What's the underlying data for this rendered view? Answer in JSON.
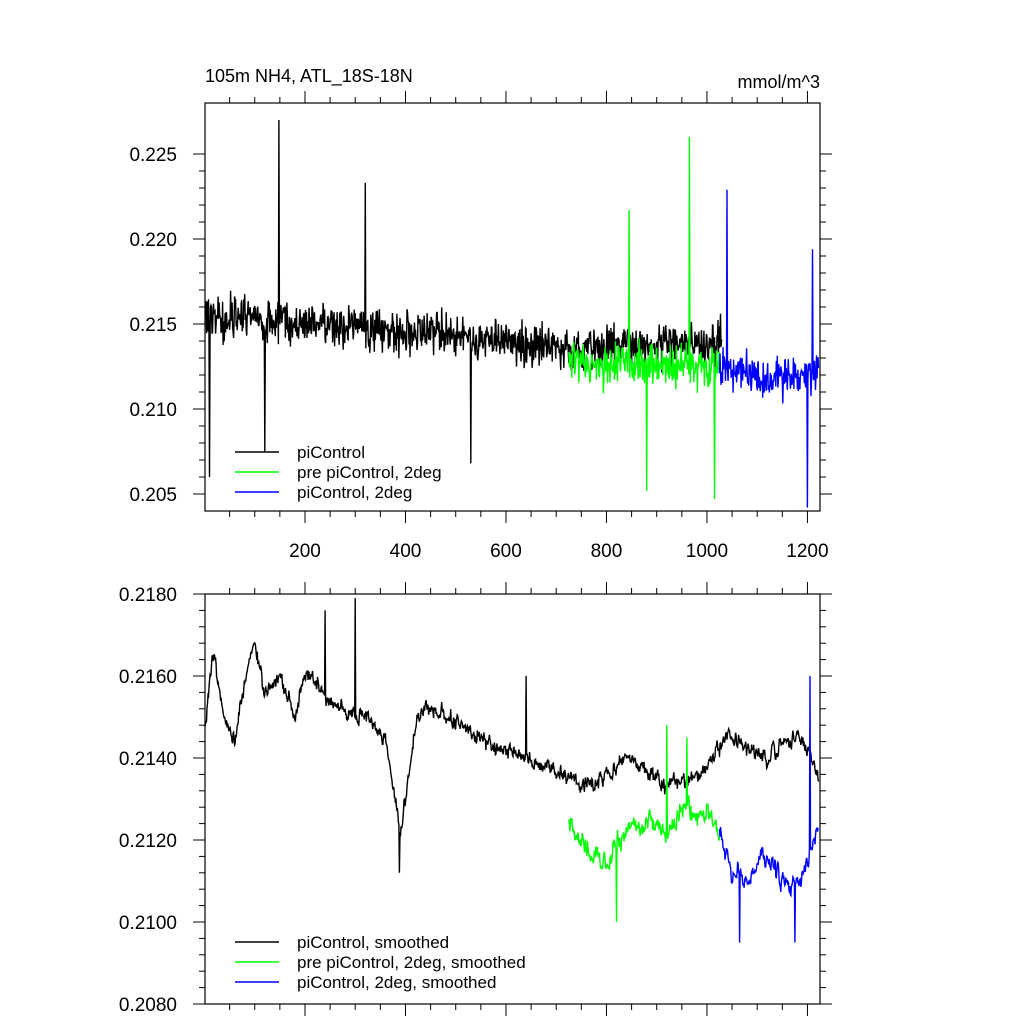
{
  "chart_data": [
    {
      "type": "line",
      "title": "105m NH4, ATL_18S-18N",
      "units": "mmol/m^3",
      "xlim": [
        1,
        1225
      ],
      "ylim": [
        0.204,
        0.228
      ],
      "x_ticks": [
        200,
        400,
        600,
        800,
        1000,
        1200
      ],
      "x_tick_labels": [
        "200",
        "400",
        "600",
        "800",
        "1000",
        "1200"
      ],
      "y_ticks": [
        0.205,
        0.21,
        0.215,
        0.22,
        0.225
      ],
      "y_tick_labels": [
        "0.205",
        "0.210",
        "0.215",
        "0.220",
        "0.225"
      ],
      "legend_placement": "bottom-left",
      "grid": false,
      "series": [
        {
          "name": "piControl",
          "color": "#000000",
          "x": [
            1,
            40,
            80,
            120,
            148,
            180,
            220,
            260,
            300,
            330,
            360,
            400,
            440,
            480,
            530,
            570,
            610,
            650,
            690,
            730,
            760,
            800,
            840,
            880,
            920,
            960,
            1000,
            1030
          ],
          "y": [
            0.2155,
            0.2153,
            0.2156,
            0.2152,
            0.2152,
            0.2151,
            0.2149,
            0.215,
            0.2148,
            0.2147,
            0.2146,
            0.2143,
            0.2146,
            0.2145,
            0.2142,
            0.2141,
            0.214,
            0.2138,
            0.2137,
            0.2135,
            0.2137,
            0.2136,
            0.2138,
            0.2136,
            0.2137,
            0.2139,
            0.2138,
            0.214
          ],
          "amplitude": 0.0018,
          "spikes": [
            [
              148,
              0.227
            ],
            [
              10,
              0.206
            ],
            [
              120,
              0.2075
            ],
            [
              320,
              0.2233
            ],
            [
              530,
              0.2068
            ]
          ]
        },
        {
          "name": "pre piControl, 2deg",
          "color": "#00ff00",
          "x": [
            725,
            760,
            800,
            840,
            880,
            920,
            960,
            1000,
            1025
          ],
          "y": [
            0.2128,
            0.2126,
            0.2124,
            0.2127,
            0.2125,
            0.2126,
            0.2127,
            0.2126,
            0.2125
          ],
          "amplitude": 0.0019,
          "spikes": [
            [
              845,
              0.2217
            ],
            [
              965,
              0.226
            ],
            [
              880,
              0.2052
            ],
            [
              1015,
              0.2047
            ]
          ]
        },
        {
          "name": "piControl, 2deg",
          "color": "#0000ff",
          "x": [
            1025,
            1060,
            1100,
            1140,
            1180,
            1222
          ],
          "y": [
            0.2125,
            0.2122,
            0.212,
            0.2118,
            0.212,
            0.2122
          ],
          "amplitude": 0.0019,
          "spikes": [
            [
              1040,
              0.2229
            ],
            [
              1200,
              0.2042
            ],
            [
              1210,
              0.2194
            ]
          ]
        }
      ]
    },
    {
      "type": "line",
      "title": "",
      "xlim": [
        1,
        1225
      ],
      "ylim": [
        0.208,
        0.218
      ],
      "x_ticks": [
        200,
        400,
        600,
        800,
        1000,
        1200
      ],
      "y_ticks": [
        0.208,
        0.21,
        0.212,
        0.214,
        0.216,
        0.218
      ],
      "y_tick_labels": [
        "0.2080",
        "0.2100",
        "0.2120",
        "0.2140",
        "0.2160",
        "0.2180"
      ],
      "legend_placement": "bottom-left",
      "grid": false,
      "series": [
        {
          "name": "piControl, smoothed",
          "color": "#000000",
          "x": [
            1,
            15,
            40,
            60,
            80,
            100,
            120,
            150,
            180,
            200,
            240,
            280,
            320,
            360,
            390,
            420,
            440,
            480,
            520,
            560,
            600,
            640,
            680,
            720,
            760,
            800,
            840,
            880,
            920,
            960,
            1000,
            1040,
            1080,
            1120,
            1160,
            1200,
            1222
          ],
          "y": [
            0.2148,
            0.2165,
            0.215,
            0.2145,
            0.2158,
            0.2168,
            0.2155,
            0.216,
            0.215,
            0.2162,
            0.2155,
            0.2152,
            0.215,
            0.2145,
            0.2122,
            0.2148,
            0.2152,
            0.215,
            0.2148,
            0.2143,
            0.2142,
            0.214,
            0.2138,
            0.2135,
            0.2133,
            0.2135,
            0.214,
            0.2137,
            0.2133,
            0.2135,
            0.2138,
            0.2145,
            0.2142,
            0.214,
            0.2145,
            0.2143,
            0.2135
          ],
          "amplitude": 0.0006,
          "spikes": [
            [
              240,
              0.2176
            ],
            [
              300,
              0.2179
            ],
            [
              388,
              0.2112
            ],
            [
              640,
              0.216
            ]
          ]
        },
        {
          "name": "pre piControl, 2deg, smoothed",
          "color": "#00ff00",
          "x": [
            725,
            760,
            800,
            840,
            880,
            920,
            960,
            1000,
            1025
          ],
          "y": [
            0.2125,
            0.2118,
            0.2115,
            0.2122,
            0.2125,
            0.2122,
            0.2128,
            0.2126,
            0.2122
          ],
          "amplitude": 0.0008,
          "spikes": [
            [
              820,
              0.21
            ],
            [
              920,
              0.2148
            ],
            [
              960,
              0.2145
            ]
          ]
        },
        {
          "name": "piControl, 2deg, smoothed",
          "color": "#0000ff",
          "x": [
            1025,
            1050,
            1080,
            1110,
            1140,
            1170,
            1200,
            1222
          ],
          "y": [
            0.2122,
            0.2112,
            0.211,
            0.2115,
            0.2112,
            0.2108,
            0.2115,
            0.2125
          ],
          "amplitude": 0.0007,
          "spikes": [
            [
              1065,
              0.2095
            ],
            [
              1175,
              0.2095
            ],
            [
              1205,
              0.216
            ]
          ]
        }
      ]
    }
  ]
}
